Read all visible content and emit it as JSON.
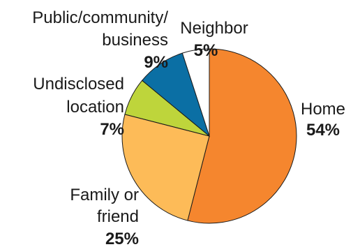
{
  "chart_data": {
    "type": "pie",
    "title": "",
    "start_angle_deg": 0,
    "direction": "clockwise",
    "slices": [
      {
        "label": [
          "Home"
        ],
        "value": 54,
        "value_label": "54%",
        "color": "#f5862e"
      },
      {
        "label": [
          "Family or",
          "friend"
        ],
        "value": 25,
        "value_label": "25%",
        "color": "#fdbb58"
      },
      {
        "label": [
          "Undisclosed",
          "location"
        ],
        "value": 7,
        "value_label": "7%",
        "color": "#bed53b"
      },
      {
        "label": [
          "Public/community/",
          "business"
        ],
        "value": 9,
        "value_label": "9%",
        "color": "#0b6fa4"
      },
      {
        "label": [
          "Neighbor"
        ],
        "value": 5,
        "value_label": "5%",
        "color": "#ffffff"
      }
    ]
  }
}
